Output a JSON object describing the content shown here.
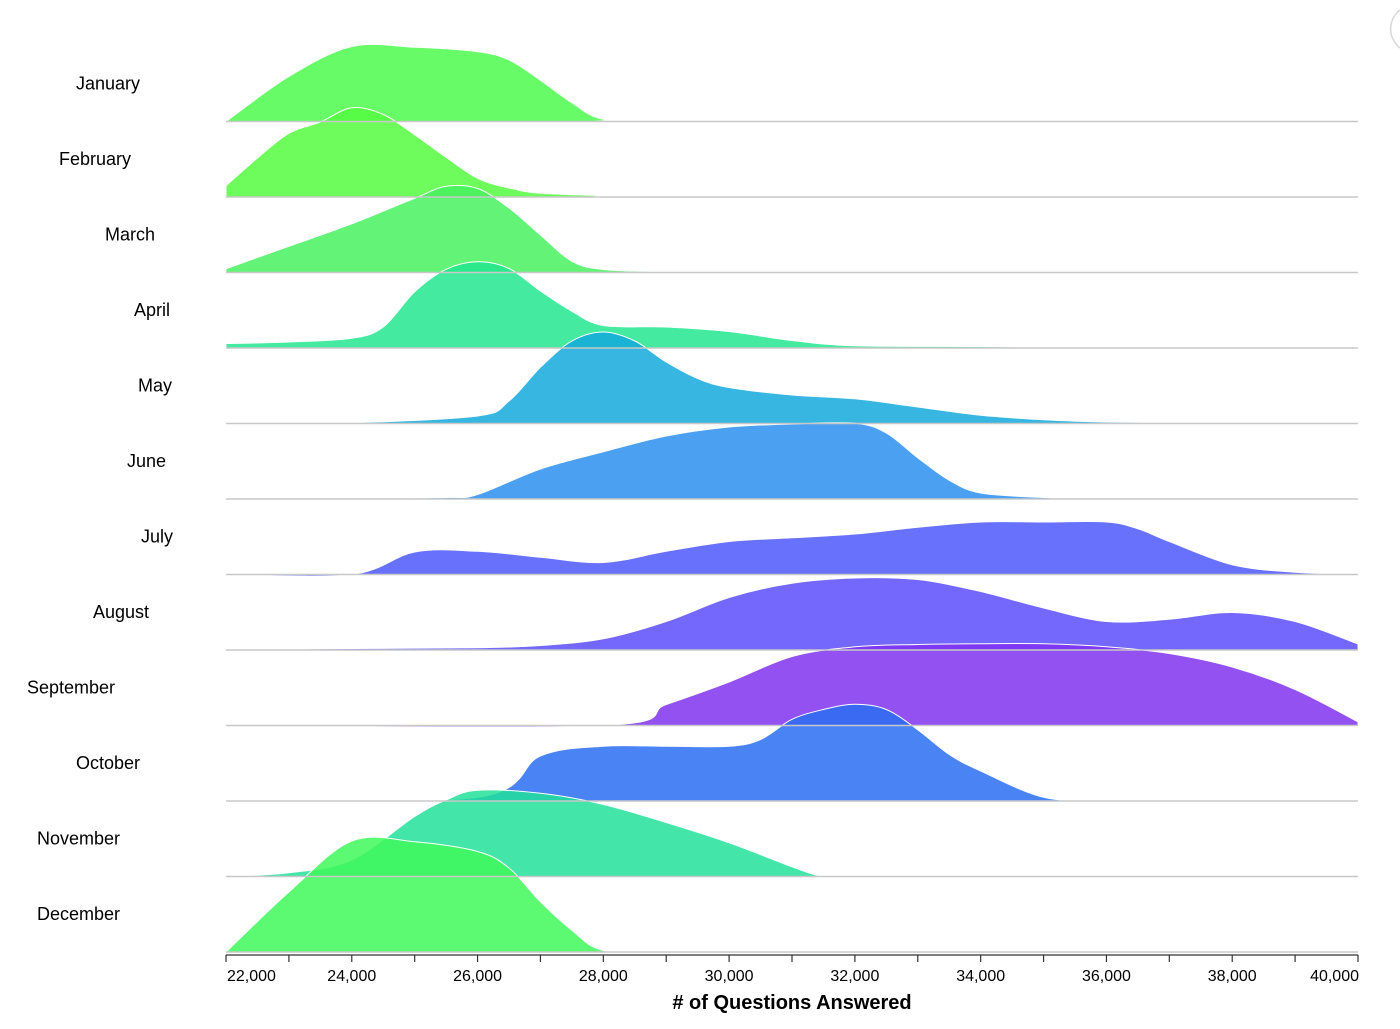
{
  "chart_data": {
    "type": "area",
    "subtype": "ridgeline",
    "xlabel": "# of Questions Answered",
    "xlim": [
      22000,
      40000
    ],
    "x_ticks": [
      22000,
      24000,
      26000,
      28000,
      30000,
      32000,
      34000,
      36000,
      38000,
      40000
    ],
    "x_tick_labels": [
      "22,000",
      "24,000",
      "26,000",
      "28,000",
      "30,000",
      "32,000",
      "34,000",
      "36,000",
      "38,000",
      "40,000"
    ],
    "grid": false,
    "legend": "none",
    "series": [
      {
        "name": "January",
        "color": "#4cfb4c",
        "x": [
          22000,
          23000,
          24000,
          25000,
          26000,
          26500,
          27000,
          27500,
          28000,
          29000,
          40000
        ],
        "y": [
          0,
          0.6,
          1.0,
          0.99,
          0.93,
          0.82,
          0.55,
          0.25,
          0.03,
          0,
          0
        ]
      },
      {
        "name": "February",
        "color": "#55fb41",
        "x": [
          22000,
          22500,
          23000,
          23500,
          24000,
          24500,
          25000,
          25500,
          26000,
          26500,
          27000,
          28000,
          29000,
          40000
        ],
        "y": [
          0.15,
          0.52,
          0.85,
          1.0,
          1.19,
          1.1,
          0.83,
          0.53,
          0.25,
          0.12,
          0.05,
          0.02,
          0,
          0
        ]
      },
      {
        "name": "March",
        "color": "#46f15f",
        "x": [
          22000,
          23000,
          24000,
          25000,
          25500,
          26000,
          26500,
          27000,
          27500,
          28000,
          29000,
          30000,
          40000
        ],
        "y": [
          0.05,
          0.35,
          0.65,
          0.99,
          1.15,
          1.12,
          0.86,
          0.5,
          0.15,
          0.04,
          0.01,
          0,
          0
        ]
      },
      {
        "name": "April",
        "color": "#22e68e",
        "x": [
          22000,
          23000,
          24000,
          24500,
          25000,
          25500,
          26000,
          26500,
          27000,
          27500,
          28000,
          29000,
          30000,
          31000,
          32000,
          34000,
          36000,
          40000
        ],
        "y": [
          0.06,
          0.08,
          0.13,
          0.28,
          0.75,
          1.05,
          1.15,
          1.06,
          0.76,
          0.49,
          0.3,
          0.28,
          0.22,
          0.1,
          0.03,
          0.02,
          0,
          0
        ]
      },
      {
        "name": "May",
        "color": "#14a9dc",
        "x": [
          22000,
          24000,
          26000,
          26500,
          27000,
          27500,
          28000,
          28500,
          29000,
          29500,
          30000,
          31000,
          32000,
          33000,
          34000,
          35000,
          36000,
          38000,
          40000
        ],
        "y": [
          0,
          0.01,
          0.1,
          0.3,
          0.75,
          1.1,
          1.22,
          1.1,
          0.82,
          0.6,
          0.48,
          0.38,
          0.33,
          0.22,
          0.11,
          0.05,
          0.02,
          0,
          0
        ]
      },
      {
        "name": "June",
        "color": "#2b8ff0",
        "x": [
          22000,
          24000,
          25500,
          26000,
          27000,
          28000,
          29000,
          30000,
          31000,
          32000,
          32500,
          33000,
          33500,
          34000,
          35000,
          36000,
          40000
        ],
        "y": [
          0,
          0.01,
          0.02,
          0.06,
          0.4,
          0.63,
          0.84,
          0.96,
          1.0,
          1.01,
          0.88,
          0.55,
          0.25,
          0.08,
          0.02,
          0,
          0
        ]
      },
      {
        "name": "July",
        "color": "#4c58fb",
        "x": [
          22000,
          24000,
          25000,
          26000,
          27000,
          28000,
          29000,
          30000,
          31000,
          32000,
          33000,
          34000,
          35000,
          36000,
          36500,
          37000,
          38000,
          39000,
          40000
        ],
        "y": [
          0,
          0.0,
          0.3,
          0.31,
          0.23,
          0.16,
          0.31,
          0.44,
          0.49,
          0.54,
          0.63,
          0.7,
          0.7,
          0.7,
          0.61,
          0.44,
          0.13,
          0.03,
          0
        ]
      },
      {
        "name": "August",
        "color": "#5b4cfb",
        "x": [
          22000,
          24000,
          26000,
          27000,
          28000,
          29000,
          30000,
          31000,
          32000,
          33000,
          34000,
          35000,
          36000,
          37000,
          38000,
          39000,
          40000
        ],
        "y": [
          0,
          0.02,
          0.03,
          0.06,
          0.15,
          0.38,
          0.7,
          0.89,
          0.96,
          0.94,
          0.78,
          0.56,
          0.38,
          0.41,
          0.5,
          0.38,
          0.08
        ]
      },
      {
        "name": "September",
        "color": "#8033f0",
        "x": [
          22000,
          28000,
          29000,
          30000,
          31000,
          32000,
          33000,
          34000,
          35000,
          36000,
          37000,
          38000,
          39000,
          40000
        ],
        "y": [
          0,
          0.0,
          0.28,
          0.58,
          0.92,
          1.05,
          1.08,
          1.09,
          1.09,
          1.05,
          0.96,
          0.78,
          0.48,
          0.05
        ]
      },
      {
        "name": "October",
        "color": "#2a6df2",
        "x": [
          22000,
          26000,
          27000,
          28000,
          29000,
          30000,
          30500,
          31000,
          31500,
          32000,
          32500,
          33000,
          33500,
          34000,
          35000,
          36000,
          37000,
          40000
        ],
        "y": [
          0,
          0.05,
          0.6,
          0.73,
          0.73,
          0.73,
          0.82,
          1.09,
          1.22,
          1.29,
          1.22,
          0.95,
          0.62,
          0.4,
          0.05,
          0,
          0,
          0
        ]
      },
      {
        "name": "November",
        "color": "#22e09a",
        "x": [
          22000,
          23000,
          24000,
          25000,
          25500,
          26000,
          27000,
          28000,
          29000,
          30000,
          31000,
          31500,
          32000,
          40000
        ],
        "y": [
          0,
          0.05,
          0.22,
          0.8,
          1.02,
          1.15,
          1.11,
          0.96,
          0.72,
          0.45,
          0.13,
          0.0,
          0,
          0
        ]
      },
      {
        "name": "December",
        "color": "#40f85a",
        "x": [
          22000,
          23000,
          24000,
          25000,
          26000,
          26500,
          27000,
          27500,
          28000,
          29000,
          40000
        ],
        "y": [
          0,
          0.8,
          1.48,
          1.47,
          1.34,
          1.12,
          0.67,
          0.29,
          0.02,
          0,
          0
        ]
      }
    ]
  }
}
